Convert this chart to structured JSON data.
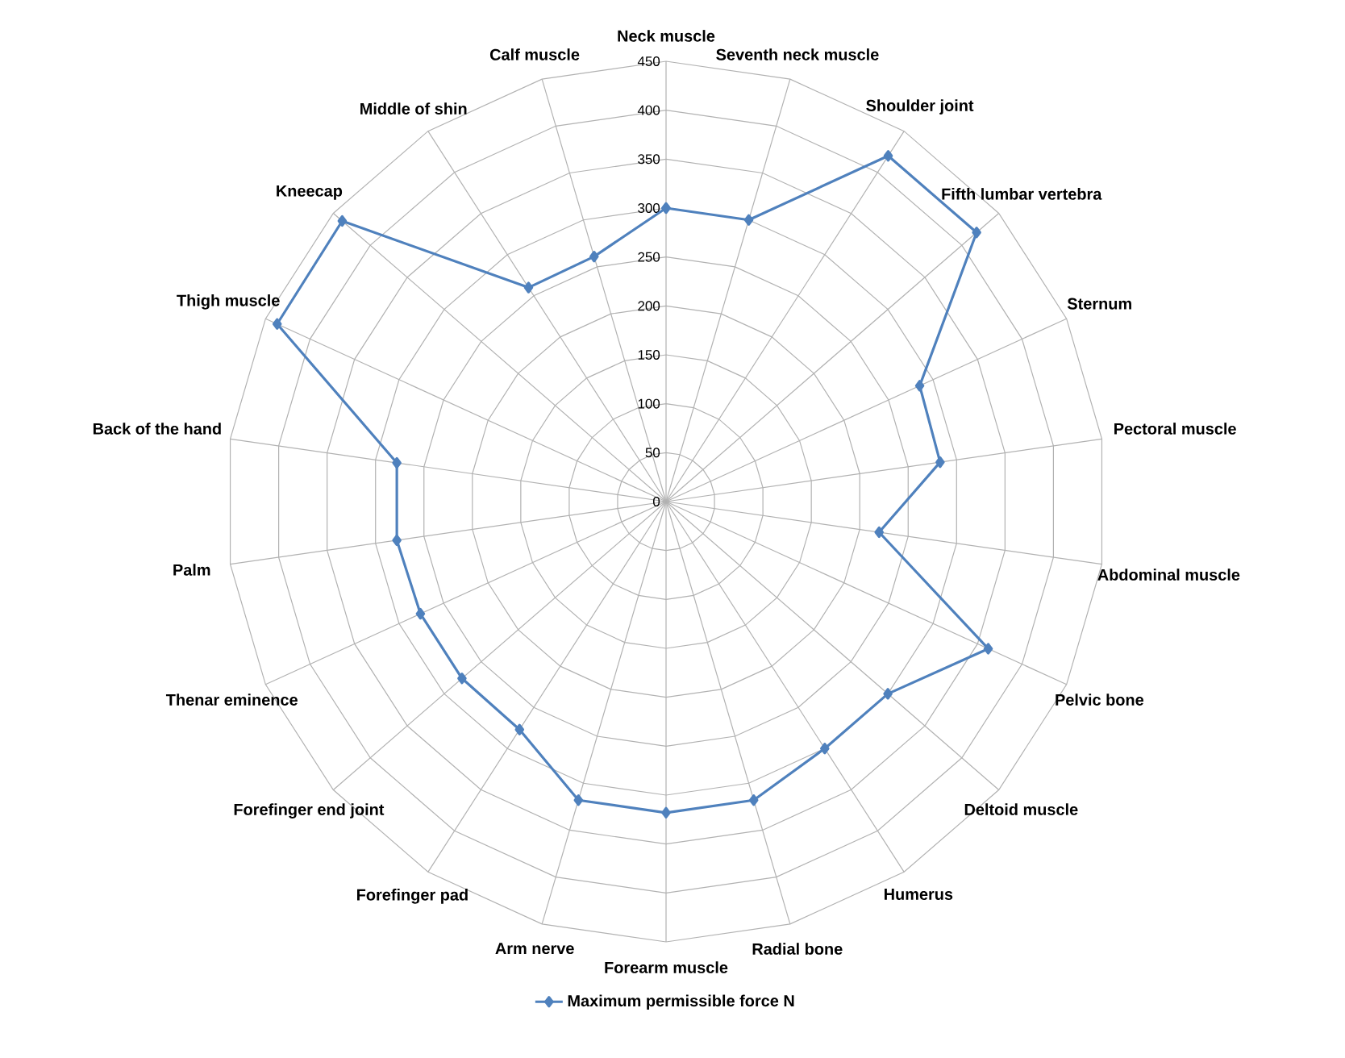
{
  "chart_data": {
    "type": "radar",
    "categories": [
      "Neck muscle",
      "Seventh neck muscle",
      "Shoulder joint",
      "Fifth lumbar vertebra",
      "Sternum",
      "Pectoral muscle",
      "Abdominal muscle",
      "Pelvic bone",
      "Deltoid muscle",
      "Humerus",
      "Radial bone",
      "Forearm muscle",
      "Arm nerve",
      "Forefinger pad",
      "Forefinger end joint",
      "Thenar eminence",
      "Palm",
      "Back of the hand",
      "Thigh muscle",
      "Kneecap",
      "Middle of shin",
      "Calf muscle"
    ],
    "series": [
      {
        "name": "Maximum permissible force  N",
        "color": "#4f81bd",
        "values": [
          300,
          300,
          420,
          420,
          285,
          283,
          220,
          362,
          300,
          300,
          318,
          318,
          318,
          277,
          276,
          276,
          278,
          278,
          437,
          438,
          260,
          261
        ]
      }
    ],
    "ylim": [
      0,
      450
    ],
    "yticks": [
      0,
      50,
      100,
      150,
      200,
      250,
      300,
      350,
      400,
      450
    ],
    "grid": true,
    "legend": "bottom",
    "marker": "diamond"
  }
}
